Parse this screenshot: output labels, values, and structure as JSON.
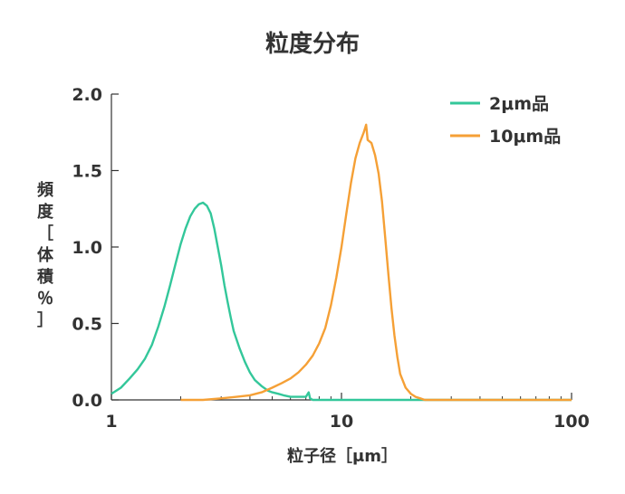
{
  "chart_data": {
    "type": "line",
    "title": "粒度分布",
    "xlabel": "粒子径［μm］",
    "ylabel": "頻度［体積％］",
    "x_scale": "log",
    "xlim": [
      1,
      100
    ],
    "ylim": [
      0,
      2.0
    ],
    "x_ticks": [
      "1",
      "10",
      "100"
    ],
    "y_ticks": [
      "0.0",
      "0.5",
      "1.0",
      "1.5",
      "2.0"
    ],
    "legend_position": "top-right",
    "grid": false,
    "series": [
      {
        "name": "2μm品",
        "color": "#33c79a",
        "x": [
          1.0,
          1.1,
          1.2,
          1.3,
          1.4,
          1.5,
          1.6,
          1.7,
          1.8,
          1.9,
          2.0,
          2.1,
          2.2,
          2.3,
          2.4,
          2.5,
          2.6,
          2.7,
          2.8,
          2.9,
          3.0,
          3.1,
          3.2,
          3.3,
          3.4,
          3.6,
          3.8,
          4.0,
          4.2,
          4.5,
          4.8,
          5.0,
          5.3,
          5.6,
          6.0,
          6.5,
          7.0,
          7.2,
          7.3,
          7.5,
          8.0,
          10.0,
          20.0,
          50.0,
          100.0
        ],
        "y": [
          0.04,
          0.08,
          0.14,
          0.2,
          0.27,
          0.36,
          0.48,
          0.61,
          0.75,
          0.89,
          1.02,
          1.12,
          1.2,
          1.25,
          1.28,
          1.29,
          1.27,
          1.22,
          1.12,
          1.0,
          0.88,
          0.75,
          0.64,
          0.54,
          0.45,
          0.34,
          0.25,
          0.18,
          0.13,
          0.09,
          0.06,
          0.05,
          0.04,
          0.03,
          0.02,
          0.02,
          0.02,
          0.05,
          0.01,
          0.0,
          0.0,
          0.0,
          0.0,
          0.0,
          0.0
        ]
      },
      {
        "name": "10μm品",
        "color": "#f5a036",
        "x": [
          2.0,
          2.5,
          3.0,
          3.5,
          4.0,
          4.5,
          5.0,
          5.5,
          6.0,
          6.5,
          7.0,
          7.5,
          8.0,
          8.5,
          9.0,
          9.5,
          10.0,
          10.5,
          11.0,
          11.5,
          12.0,
          12.5,
          12.8,
          13.0,
          13.5,
          14.0,
          14.5,
          15.0,
          15.5,
          16.0,
          16.5,
          17.0,
          17.5,
          18.0,
          19.0,
          20.0,
          21.0,
          22.0,
          23.0,
          24.0,
          50.0,
          100.0
        ],
        "y": [
          0.0,
          0.0,
          0.01,
          0.02,
          0.03,
          0.05,
          0.08,
          0.11,
          0.14,
          0.18,
          0.23,
          0.29,
          0.37,
          0.47,
          0.62,
          0.8,
          1.0,
          1.22,
          1.42,
          1.58,
          1.68,
          1.75,
          1.8,
          1.7,
          1.68,
          1.6,
          1.48,
          1.3,
          1.06,
          0.82,
          0.6,
          0.42,
          0.28,
          0.17,
          0.08,
          0.04,
          0.02,
          0.01,
          0.0,
          0.0,
          0.0,
          0.0
        ]
      }
    ]
  }
}
